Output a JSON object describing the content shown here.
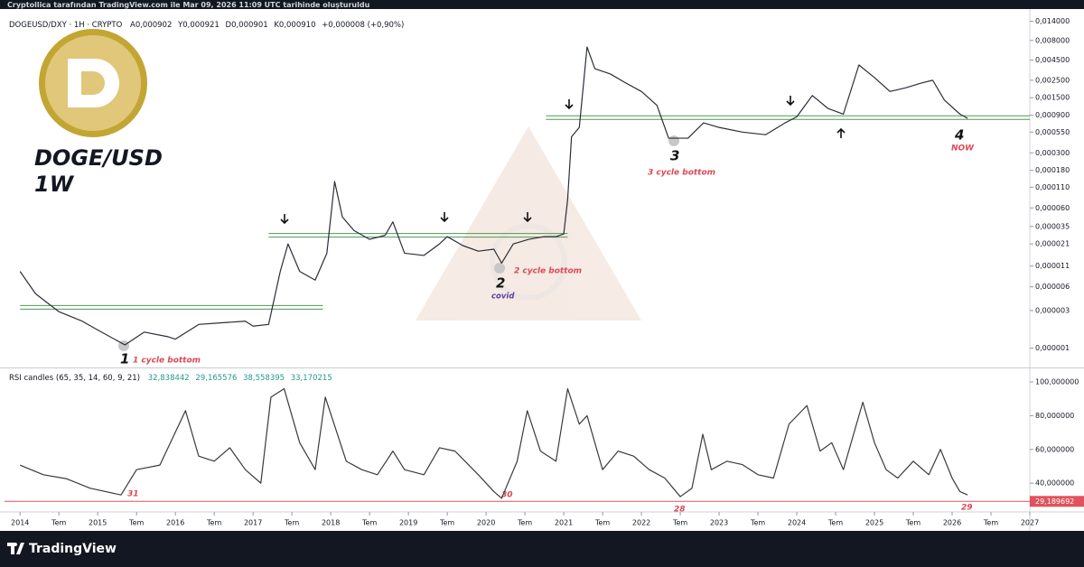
{
  "header": "Cryptollica tarafından TradingView.com ile Mar 09, 2026 11:09 UTC tarihinde oluşturuldu",
  "footer": "TradingView",
  "chart_data": [
    {
      "type": "line",
      "log_scale": true,
      "grid": false,
      "title": "DOGEUSD/DXY · 1H · CRYPTO",
      "ohlc": [
        "A0,000902",
        "Y0,000921",
        "D0,000901",
        "K0,000910",
        "+0,000008 (+0,90%)"
      ],
      "overlay_title": "DOGE/USD",
      "overlay_subtitle": "1W",
      "annotations": [
        "1",
        "1 cycle bottom",
        "2",
        "2 cycle bottom",
        "covid",
        "3",
        "3 cycle bottom",
        "4",
        "NOW"
      ],
      "color": "#2a2e39",
      "xlim": [
        2013.8,
        2027.0
      ],
      "ylim": [
        6e-07,
        0.02
      ],
      "yticks": [
        {
          "value": 0.014,
          "label": "0,014000"
        },
        {
          "value": 0.008,
          "label": "0,008000"
        },
        {
          "value": 0.0045,
          "label": "0,004500"
        },
        {
          "value": 0.0025,
          "label": "0,002500"
        },
        {
          "value": 0.0015,
          "label": "0,001500"
        },
        {
          "value": 0.0009,
          "label": "0,000900"
        },
        {
          "value": 0.00055,
          "label": "0,000550"
        },
        {
          "value": 0.0003,
          "label": "0,000300"
        },
        {
          "value": 0.00018,
          "label": "0,000180"
        },
        {
          "value": 0.00011,
          "label": "0,000110"
        },
        {
          "value": 6e-05,
          "label": "0,000060"
        },
        {
          "value": 3.5e-05,
          "label": "0,000035"
        },
        {
          "value": 2.1e-05,
          "label": "0,000021"
        },
        {
          "value": 1.1e-05,
          "label": "0,000011"
        },
        {
          "value": 6e-06,
          "label": "0,000006"
        },
        {
          "value": 3e-06,
          "label": "0,000003"
        },
        {
          "value": 1e-06,
          "label": "0,000001"
        }
      ],
      "x": [
        2014.0,
        2014.2,
        2014.5,
        2014.8,
        2015.0,
        2015.35,
        2015.6,
        2015.9,
        2016.0,
        2016.3,
        2016.6,
        2016.9,
        2017.0,
        2017.2,
        2017.35,
        2017.45,
        2017.6,
        2017.8,
        2017.95,
        2018.05,
        2018.15,
        2018.3,
        2018.5,
        2018.7,
        2018.8,
        2018.95,
        2019.2,
        2019.4,
        2019.5,
        2019.7,
        2019.9,
        2020.1,
        2020.2,
        2020.35,
        2020.55,
        2020.75,
        2020.9,
        2021.0,
        2021.05,
        2021.1,
        2021.2,
        2021.3,
        2021.4,
        2021.6,
        2021.8,
        2022.0,
        2022.2,
        2022.35,
        2022.6,
        2022.8,
        2023.0,
        2023.3,
        2023.6,
        2023.85,
        2024.0,
        2024.2,
        2024.4,
        2024.6,
        2024.8,
        2025.0,
        2025.2,
        2025.4,
        2025.6,
        2025.75,
        2025.9,
        2026.1,
        2026.2
      ],
      "values": [
        9.4e-06,
        4.9e-06,
        2.9e-06,
        2.2e-06,
        1.7e-06,
        1.1e-06,
        1.6e-06,
        1.4e-06,
        1.3e-06,
        2e-06,
        2.1e-06,
        2.2e-06,
        1.9e-06,
        2e-06,
        9.4e-06,
        2.1e-05,
        9.4e-06,
        7.3e-06,
        1.6e-05,
        0.00013,
        4.6e-05,
        3.1e-05,
        2.4e-05,
        2.7e-05,
        4e-05,
        1.6e-05,
        1.5e-05,
        2.1e-05,
        2.6e-05,
        2e-05,
        1.7e-05,
        1.8e-05,
        1.2e-05,
        2.1e-05,
        2.4e-05,
        2.6e-05,
        2.6e-05,
        2.8e-05,
        7.7e-05,
        0.00048,
        0.00063,
        0.0066,
        0.0035,
        0.003,
        0.0023,
        0.0018,
        0.0012,
        0.00046,
        0.00046,
        0.00072,
        0.00063,
        0.00055,
        0.00051,
        0.00072,
        0.00086,
        0.0016,
        0.0011,
        0.00093,
        0.0039,
        0.0027,
        0.0018,
        0.002,
        0.0023,
        0.0025,
        0.0014,
        0.00093,
        0.00082
      ],
      "level_color": "#4c9a55",
      "levels": [
        {
          "value": 3.3e-06,
          "x": [
            2014.0,
            2017.9
          ]
        },
        {
          "value": 2.7e-05,
          "x": [
            2017.2,
            2021.05
          ]
        },
        {
          "value": 0.00084,
          "x": [
            2020.77,
            2027.0
          ]
        }
      ]
    },
    {
      "type": "line",
      "grid": false,
      "title": "RSI candles (65, 35, 14, 60, 9, 21)",
      "readouts": [
        "32,838442",
        "29,165576",
        "38,558395",
        "33,170215"
      ],
      "annotations": [
        "31",
        "30",
        "28",
        "29"
      ],
      "color": "#3a3a3a",
      "xlim": [
        2013.8,
        2027.0
      ],
      "ylim": [
        24,
        107
      ],
      "yticks": [
        {
          "value": 100,
          "label": "100,000000"
        },
        {
          "value": 80,
          "label": "80,000000"
        },
        {
          "value": 60,
          "label": "60,000000"
        },
        {
          "value": 40,
          "label": "40,000000"
        }
      ],
      "xticks": [
        2014,
        {
          "value": 2014.5,
          "label": "Tem"
        },
        2015,
        {
          "value": 2015.5,
          "label": "Tem"
        },
        2016,
        {
          "value": 2016.5,
          "label": "Tem"
        },
        2017,
        {
          "value": 2017.5,
          "label": "Tem"
        },
        2018,
        {
          "value": 2018.5,
          "label": "Tem"
        },
        2019,
        {
          "value": 2019.5,
          "label": "Tem"
        },
        2020,
        {
          "value": 2020.5,
          "label": "Tem"
        },
        2021,
        {
          "value": 2021.5,
          "label": "Tem"
        },
        2022,
        {
          "value": 2022.5,
          "label": "Tem"
        },
        2023,
        {
          "value": 2023.5,
          "label": "Tem"
        },
        2024,
        {
          "value": 2024.5,
          "label": "Tem"
        },
        2025,
        {
          "value": 2025.5,
          "label": "Tem"
        },
        2026,
        {
          "value": 2026.5,
          "label": "Tem"
        },
        2027
      ],
      "hline": {
        "value": 29.189692,
        "label": "29,189692",
        "color": "#e0525c"
      },
      "x": [
        2014.0,
        2014.3,
        2014.6,
        2014.9,
        2015.3,
        2015.5,
        2015.8,
        2016.13,
        2016.3,
        2016.5,
        2016.7,
        2016.9,
        2017.1,
        2017.23,
        2017.4,
        2017.6,
        2017.8,
        2017.93,
        2018.2,
        2018.4,
        2018.6,
        2018.8,
        2018.95,
        2019.2,
        2019.4,
        2019.6,
        2019.9,
        2020.1,
        2020.2,
        2020.4,
        2020.53,
        2020.7,
        2020.9,
        2021.05,
        2021.2,
        2021.3,
        2021.5,
        2021.7,
        2021.9,
        2022.1,
        2022.3,
        2022.5,
        2022.65,
        2022.79,
        2022.9,
        2023.1,
        2023.3,
        2023.5,
        2023.7,
        2023.9,
        2024.13,
        2024.3,
        2024.45,
        2024.6,
        2024.85,
        2025.0,
        2025.15,
        2025.3,
        2025.5,
        2025.7,
        2025.85,
        2026.0,
        2026.1,
        2026.2
      ],
      "values": [
        50.7,
        45,
        42.6,
        37,
        33,
        48,
        50.7,
        83,
        56,
        53,
        61,
        48,
        40,
        91,
        96,
        64,
        48,
        91,
        53,
        48,
        45,
        59,
        48,
        45,
        61,
        59,
        45,
        35,
        31,
        53,
        83,
        59,
        53,
        96,
        75,
        80,
        48,
        59,
        56,
        48,
        43,
        32,
        37,
        69,
        48,
        53,
        51,
        45,
        43,
        75,
        86,
        59,
        64,
        48,
        88,
        64,
        48,
        43,
        53,
        45,
        60,
        43,
        35,
        33
      ]
    }
  ]
}
